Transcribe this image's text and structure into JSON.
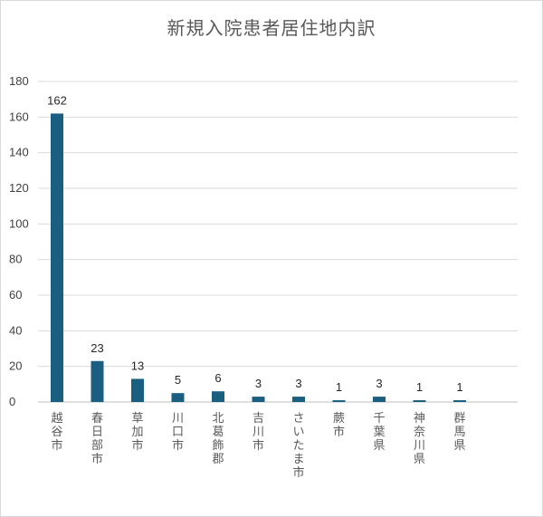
{
  "chart_data": {
    "type": "bar",
    "title": "新規入院患者居住地内訳",
    "xlabel": "",
    "ylabel": "",
    "categories": [
      "越谷市",
      "春日部市",
      "草加市",
      "川口市",
      "北葛飾郡",
      "吉川市",
      "さいたま市",
      "蕨市",
      "千葉県",
      "神奈川県",
      "群馬県"
    ],
    "values": [
      162,
      23,
      13,
      5,
      6,
      3,
      3,
      1,
      3,
      1,
      1
    ],
    "ylim": [
      0,
      180
    ],
    "yticks": [
      0,
      20,
      40,
      60,
      80,
      100,
      120,
      140,
      160,
      180
    ],
    "grid": true,
    "legend": "none",
    "bar_color": "#1b5f80",
    "grid_color": "#d9d9d9",
    "axis_color": "#bfbfbf"
  }
}
